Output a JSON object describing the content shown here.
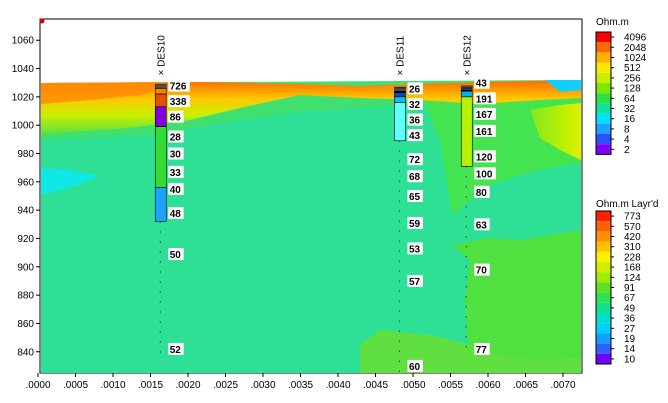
{
  "chart_data": {
    "type": "heatmap",
    "x_axis": {
      "min": 0.0,
      "max": 0.0072,
      "ticks": [
        ".0000",
        ".0005",
        ".0010",
        ".0015",
        ".0020",
        ".0025",
        ".0030",
        ".0035",
        ".0040",
        ".0045",
        ".0050",
        ".0055",
        ".0060",
        ".0065",
        ".0070"
      ]
    },
    "y_axis": {
      "min": 825,
      "max": 1075,
      "ticks": [
        840,
        860,
        880,
        900,
        920,
        940,
        960,
        980,
        1000,
        1020,
        1040,
        1060
      ]
    },
    "surface_elevation": 1033,
    "legend_resistivity": {
      "title": "Ohm.m",
      "labels": [
        "4096",
        "2048",
        "1024",
        "512",
        "256",
        "128",
        "64",
        "32",
        "16",
        "8",
        "4",
        "2"
      ],
      "colors": [
        "#ff0000",
        "#ff6a00",
        "#ffb000",
        "#ffe800",
        "#c8f000",
        "#7ee800",
        "#30e040",
        "#10e0a0",
        "#00e0ff",
        "#20a0ff",
        "#3050ff",
        "#8000ff"
      ]
    },
    "legend_layered": {
      "title": "Ohm.m Layr'd",
      "labels": [
        "773",
        "570",
        "420",
        "310",
        "228",
        "168",
        "124",
        "91",
        "67",
        "49",
        "36",
        "27",
        "19",
        "14",
        "10"
      ],
      "colors": [
        "#ff2000",
        "#ff6000",
        "#ff9000",
        "#ffc000",
        "#fff000",
        "#d0f000",
        "#a0ec00",
        "#60e020",
        "#30e050",
        "#10e090",
        "#00e0c8",
        "#00d0ff",
        "#10a0ff",
        "#3060ff",
        "#7000ff"
      ]
    },
    "boreholes": [
      {
        "name": "DES10",
        "x": 0.00163,
        "layers": [
          {
            "top": 1029,
            "bottom": 1026,
            "color": "#000000"
          },
          {
            "top": 1026,
            "bottom": 1022,
            "color": "#ff8000"
          },
          {
            "top": 1022,
            "bottom": 1013,
            "color": "#e05000"
          },
          {
            "top": 1013,
            "bottom": 999,
            "color": "#8000e0"
          },
          {
            "top": 999,
            "bottom": 956,
            "color": "#33dd33"
          },
          {
            "top": 956,
            "bottom": 932,
            "color": "#20a0ff"
          }
        ],
        "labels": [
          {
            "y": 1028,
            "value": "726"
          },
          {
            "y": 1017,
            "value": "338"
          },
          {
            "y": 1006,
            "value": "86"
          },
          {
            "y": 992,
            "value": "28"
          },
          {
            "y": 980,
            "value": "30"
          },
          {
            "y": 967,
            "value": "33"
          },
          {
            "y": 955,
            "value": "40"
          },
          {
            "y": 938,
            "value": "48"
          },
          {
            "y": 909,
            "value": "50"
          },
          {
            "y": 842,
            "value": "52"
          }
        ]
      },
      {
        "name": "DES11",
        "x": 0.00482,
        "layers": [
          {
            "top": 1027,
            "bottom": 1023,
            "color": "#000000"
          },
          {
            "top": 1023,
            "bottom": 1020,
            "color": "#0050c0"
          },
          {
            "top": 1020,
            "bottom": 1016,
            "color": "#00c0ff"
          },
          {
            "top": 1016,
            "bottom": 989,
            "color": "#60ffff"
          }
        ],
        "labels": [
          {
            "y": 1026,
            "value": "26"
          },
          {
            "y": 1015,
            "value": "32"
          },
          {
            "y": 1004,
            "value": "36"
          },
          {
            "y": 993,
            "value": "43"
          },
          {
            "y": 976,
            "value": "72"
          },
          {
            "y": 964,
            "value": "68"
          },
          {
            "y": 950,
            "value": "65"
          },
          {
            "y": 931,
            "value": "59"
          },
          {
            "y": 913,
            "value": "53"
          },
          {
            "y": 890,
            "value": "57"
          },
          {
            "y": 830,
            "value": "60"
          }
        ]
      },
      {
        "name": "DES12",
        "x": 0.00571,
        "layers": [
          {
            "top": 1028,
            "bottom": 1024,
            "color": "#000000"
          },
          {
            "top": 1024,
            "bottom": 1020,
            "color": "#00b0ff"
          },
          {
            "top": 1020,
            "bottom": 971,
            "color": "#b8f000"
          }
        ],
        "labels": [
          {
            "y": 1030,
            "value": "43"
          },
          {
            "y": 1019,
            "value": "191"
          },
          {
            "y": 1008,
            "value": "167"
          },
          {
            "y": 996,
            "value": "161"
          },
          {
            "y": 978,
            "value": "120"
          },
          {
            "y": 966,
            "value": "100"
          },
          {
            "y": 953,
            "value": "80"
          },
          {
            "y": 930,
            "value": "63"
          },
          {
            "y": 898,
            "value": "70"
          },
          {
            "y": 842,
            "value": "77"
          }
        ]
      }
    ]
  }
}
